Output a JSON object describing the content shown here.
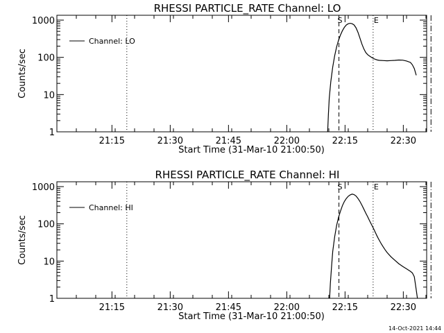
{
  "footer": {
    "timestamp": "14-Oct-2021 14:44"
  },
  "chart_data": [
    {
      "type": "line",
      "title": "RHESSI PARTICLE_RATE Channel: LO",
      "xlabel": "Start Time (31-Mar-10 21:00:50)",
      "ylabel": "Counts/sec",
      "y_scale": "log",
      "ylim": [
        1,
        1000
      ],
      "x_unit": "minutes after 21:00:50",
      "xlim": [
        0,
        39
      ],
      "x_ticks": [
        {
          "label": "21:15",
          "value": 14.17
        },
        {
          "label": "21:30",
          "value": 29.17
        },
        {
          "label": "21:45",
          "value": 44.17
        },
        {
          "label": "22:00",
          "value": 59.17
        },
        {
          "label": "22:15",
          "value": 74.17
        },
        {
          "label": "22:30",
          "value": 89.17
        }
      ],
      "y_ticks": [
        {
          "label": "1",
          "value": 1
        },
        {
          "label": "10",
          "value": 10
        },
        {
          "label": "100",
          "value": 100
        },
        {
          "label": "1000",
          "value": 1000
        }
      ],
      "legend": {
        "position": "top-left",
        "entries": [
          "Channel: LO"
        ]
      },
      "series": [
        {
          "name": "Channel: LO",
          "x": [
            69.7,
            69.9,
            70.1,
            70.5,
            71.0,
            71.5,
            72.0,
            72.5,
            73.0,
            73.5,
            74.0,
            74.5,
            75.0,
            75.5,
            76.0,
            76.5,
            77.0,
            77.5,
            78.0,
            78.5,
            79.0,
            79.5,
            80.0,
            80.5,
            81.0,
            81.5,
            82.0,
            82.5,
            83.0,
            84.0,
            85.0,
            86.0,
            87.0,
            88.0,
            89.0,
            90.0,
            91.0,
            91.5,
            92.0,
            92.5
          ],
          "y": [
            1,
            3,
            8,
            22,
            55,
            110,
            190,
            290,
            400,
            520,
            640,
            740,
            800,
            820,
            800,
            740,
            620,
            470,
            330,
            230,
            170,
            135,
            118,
            108,
            100,
            93,
            88,
            85,
            83,
            82,
            81,
            82,
            83,
            85,
            84,
            80,
            73,
            63,
            50,
            33
          ]
        }
      ],
      "vlines": [
        {
          "type": "dotted",
          "x": 18.0
        },
        {
          "type": "dashed",
          "x": 72.6,
          "label": "S"
        },
        {
          "type": "dotted",
          "x": 81.4,
          "label": "E"
        },
        {
          "type": "dash-dot",
          "x": 96.3
        }
      ]
    },
    {
      "type": "line",
      "title": "RHESSI PARTICLE_RATE Channel: HI",
      "xlabel": "Start Time (31-Mar-10 21:00:50)",
      "ylabel": "Counts/sec",
      "y_scale": "log",
      "ylim": [
        1,
        1000
      ],
      "x_unit": "minutes after 21:00:50",
      "xlim": [
        0,
        39
      ],
      "x_ticks": [
        {
          "label": "21:15",
          "value": 14.17
        },
        {
          "label": "21:30",
          "value": 29.17
        },
        {
          "label": "21:45",
          "value": 44.17
        },
        {
          "label": "22:00",
          "value": 59.17
        },
        {
          "label": "22:15",
          "value": 74.17
        },
        {
          "label": "22:30",
          "value": 89.17
        }
      ],
      "y_ticks": [
        {
          "label": "1",
          "value": 1
        },
        {
          "label": "10",
          "value": 10
        },
        {
          "label": "100",
          "value": 100
        },
        {
          "label": "1000",
          "value": 1000
        }
      ],
      "legend": {
        "position": "top-left",
        "entries": [
          "Channel: HI"
        ]
      },
      "series": [
        {
          "name": "Channel: HI",
          "x": [
            70.2,
            70.4,
            70.7,
            71.0,
            71.5,
            72.0,
            72.5,
            73.0,
            73.5,
            74.0,
            74.5,
            75.0,
            75.5,
            76.0,
            76.5,
            77.0,
            77.5,
            78.0,
            78.5,
            79.0,
            79.5,
            80.0,
            80.5,
            81.0,
            81.5,
            82.0,
            82.5,
            83.0,
            83.5,
            84.0,
            84.5,
            85.0,
            86.0,
            87.0,
            88.0,
            89.0,
            90.0,
            91.0,
            91.5,
            92.0,
            92.4,
            92.8
          ],
          "y": [
            1,
            2.5,
            7,
            18,
            45,
            90,
            150,
            220,
            310,
            400,
            480,
            550,
            600,
            630,
            610,
            560,
            480,
            400,
            320,
            250,
            195,
            155,
            120,
            95,
            75,
            58,
            45,
            36,
            29,
            24,
            20,
            17,
            13,
            10.5,
            8.5,
            7.2,
            6.2,
            5.3,
            4.8,
            3.8,
            2.0,
            1
          ]
        }
      ],
      "vlines": [
        {
          "type": "dotted",
          "x": 18.0
        },
        {
          "type": "dashed",
          "x": 72.6,
          "label": "S"
        },
        {
          "type": "dotted",
          "x": 81.4,
          "label": "E"
        },
        {
          "type": "dash-dot",
          "x": 96.3
        }
      ]
    }
  ]
}
